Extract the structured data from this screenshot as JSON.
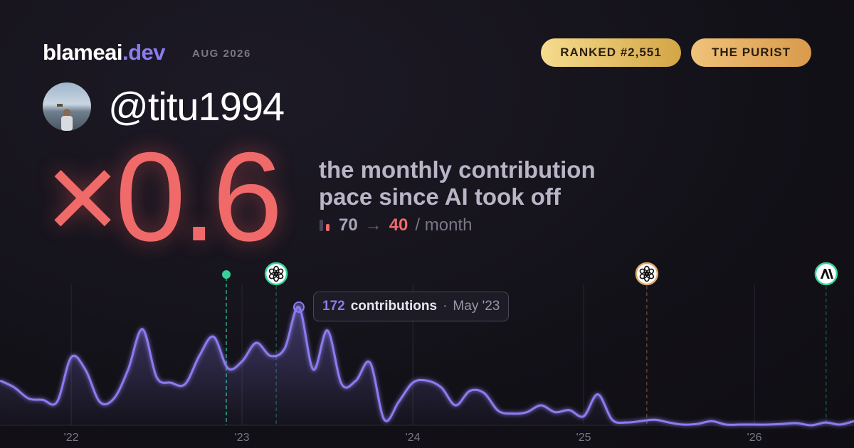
{
  "header": {
    "brand": "blameai",
    "brand_suffix": ".dev",
    "date": "AUG 2026",
    "badges": [
      "RANKED #2,551",
      "THE PURIST"
    ]
  },
  "profile": {
    "handle": "@titu1994"
  },
  "stat": {
    "multiplier": "×0.6",
    "description": [
      "the monthly contribution",
      "pace since AI took off"
    ],
    "before": 70,
    "arrow": "→",
    "after": 40,
    "unit": "/ month"
  },
  "chart_data": {
    "type": "area",
    "x": [
      2021.583,
      2021.667,
      2021.75,
      2021.833,
      2021.917,
      2022,
      2022.083,
      2022.167,
      2022.25,
      2022.333,
      2022.417,
      2022.5,
      2022.583,
      2022.667,
      2022.75,
      2022.833,
      2022.917,
      2023,
      2023.083,
      2023.167,
      2023.25,
      2023.333,
      2023.417,
      2023.5,
      2023.583,
      2023.667,
      2023.75,
      2023.833,
      2023.917,
      2024,
      2024.083,
      2024.167,
      2024.25,
      2024.333,
      2024.417,
      2024.5,
      2024.583,
      2024.667,
      2024.75,
      2024.833,
      2024.917,
      2025,
      2025.083,
      2025.167,
      2025.25,
      2025.333,
      2025.417,
      2025.5,
      2025.583,
      2025.667,
      2025.75,
      2025.833,
      2025.917,
      2026,
      2026.083,
      2026.167,
      2026.25,
      2026.333,
      2026.417,
      2026.5,
      2026.583
    ],
    "series": [
      {
        "name": "contributions",
        "color": "#8b7cf0",
        "values": [
          65,
          55,
          39,
          37,
          34,
          99,
          81,
          34,
          39,
          81,
          140,
          70,
          62,
          60,
          101,
          129,
          83,
          93,
          120,
          101,
          112,
          172,
          81,
          138,
          60,
          65,
          91,
          8,
          34,
          62,
          65,
          55,
          29,
          50,
          47,
          21,
          17,
          19,
          29,
          19,
          22,
          13,
          45,
          8,
          4,
          6,
          8,
          4,
          1,
          2,
          6,
          1,
          1,
          1,
          1,
          2,
          3,
          0,
          4,
          1,
          6
        ]
      }
    ],
    "xlim": [
      2021.583,
      2026.583
    ],
    "ylim": [
      0,
      205
    ],
    "xticks": [
      {
        "value": 2022,
        "label": "'22"
      },
      {
        "value": 2023,
        "label": "'23"
      },
      {
        "value": 2024,
        "label": "'24"
      },
      {
        "value": 2025,
        "label": "'25"
      },
      {
        "value": 2026,
        "label": "'26"
      }
    ],
    "grid": true,
    "tooltip": {
      "index": 21,
      "label": "contributions",
      "date": "May '23"
    },
    "events": [
      {
        "x": 2022.908,
        "kind": "dot",
        "color": "#34d399"
      },
      {
        "x": 2023.2,
        "kind": "openai",
        "color": "#34d399"
      },
      {
        "x": 2025.37,
        "kind": "openai",
        "color": "#e0a86a"
      },
      {
        "x": 2026.42,
        "kind": "anthropic",
        "color": "#34d399"
      }
    ]
  }
}
